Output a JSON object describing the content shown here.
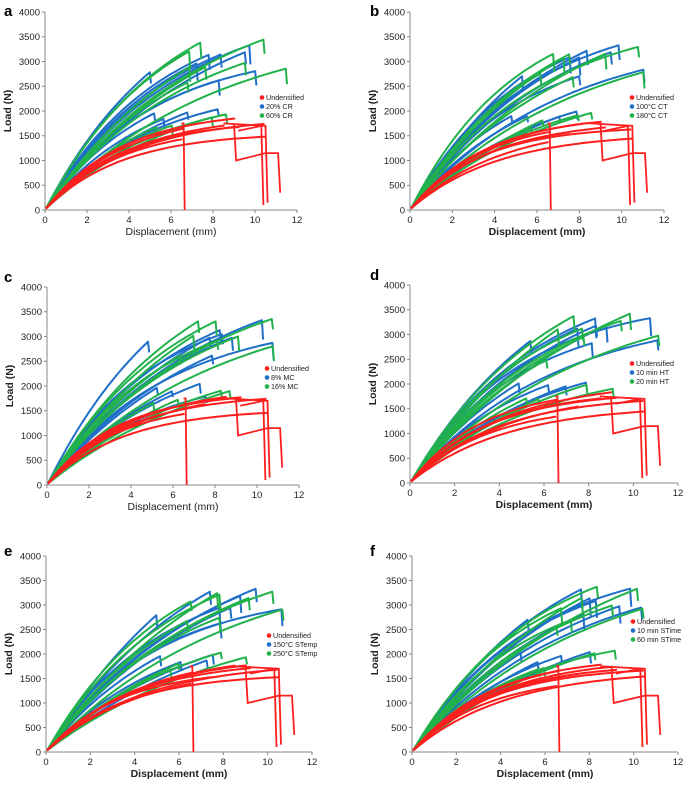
{
  "figure": {
    "description_caption": ""
  },
  "chart_data": [
    {
      "type": "line",
      "panel": "a",
      "xlabel": "Displacement (mm)",
      "ylabel": "Load (N)",
      "xlim": [
        0,
        12
      ],
      "ylim": [
        0,
        4000
      ],
      "xticks": [
        "0",
        "2",
        "4",
        "6",
        "8",
        "10",
        "12"
      ],
      "yticks": [
        "0",
        "500",
        "1000",
        "1500",
        "2000",
        "2500",
        "3000",
        "3500",
        "4000"
      ],
      "legend": [
        "Undensified",
        "20% CR",
        "60% CR"
      ],
      "colors": {
        "Undensified": "#ff1e1e",
        "blue": "#1f6fc9",
        "green": "#21b24b"
      },
      "seed": 11
    },
    {
      "type": "line",
      "panel": "b",
      "xlabel": "Displacement (mm)",
      "ylabel": "Load (N)",
      "xlim": [
        0,
        12
      ],
      "ylim": [
        0,
        4000
      ],
      "xticks": [
        "0",
        "2",
        "4",
        "6",
        "8",
        "10",
        "12"
      ],
      "yticks": [
        "0",
        "500",
        "1000",
        "1500",
        "2000",
        "2500",
        "3000",
        "3500",
        "4000"
      ],
      "legend": [
        "Undensified",
        "100°C CT",
        "180°C CT"
      ],
      "colors": {
        "Undensified": "#ff1e1e",
        "blue": "#1f6fc9",
        "green": "#21b24b"
      },
      "seed": 23
    },
    {
      "type": "line",
      "panel": "c",
      "xlabel": "Displacement (mm)",
      "ylabel": "Load (N)",
      "xlim": [
        0,
        12
      ],
      "ylim": [
        0,
        4000
      ],
      "xticks": [
        "0",
        "2",
        "4",
        "6",
        "8",
        "10",
        "12"
      ],
      "yticks": [
        "0",
        "500",
        "1000",
        "1500",
        "2000",
        "2500",
        "3000",
        "3500",
        "4000"
      ],
      "legend": [
        "Undensified",
        "8% MC",
        "16% MC"
      ],
      "colors": {
        "Undensified": "#ff1e1e",
        "blue": "#1f6fc9",
        "green": "#21b24b"
      },
      "seed": 37
    },
    {
      "type": "line",
      "panel": "d",
      "xlabel": "Displacement (mm)",
      "ylabel": "Load (N)",
      "xlim": [
        0,
        12
      ],
      "ylim": [
        0,
        4000
      ],
      "xticks": [
        "0",
        "2",
        "4",
        "6",
        "8",
        "10",
        "12"
      ],
      "yticks": [
        "0",
        "500",
        "1000",
        "1500",
        "2000",
        "2500",
        "3000",
        "3500",
        "4000"
      ],
      "legend": [
        "Undensified",
        "10 min HT",
        "20 min HT"
      ],
      "colors": {
        "Undensified": "#ff1e1e",
        "blue": "#1f6fc9",
        "green": "#21b24b"
      },
      "seed": 41
    },
    {
      "type": "line",
      "panel": "e",
      "xlabel": "Displacement (mm)",
      "ylabel": "Load (N)",
      "xlim": [
        0,
        12
      ],
      "ylim": [
        0,
        4000
      ],
      "xticks": [
        "0",
        "2",
        "4",
        "6",
        "8",
        "10",
        "12"
      ],
      "yticks": [
        "0",
        "500",
        "1000",
        "1500",
        "2000",
        "2500",
        "3000",
        "3500",
        "4000"
      ],
      "legend": [
        "Undensified",
        "150°C STemp",
        "250°C STemp"
      ],
      "colors": {
        "Undensified": "#ff1e1e",
        "blue": "#1f6fc9",
        "green": "#21b24b"
      },
      "seed": 53
    },
    {
      "type": "line",
      "panel": "f",
      "xlabel": "Displacement (mm)",
      "ylabel": "Load (N)",
      "xlim": [
        0,
        12
      ],
      "ylim": [
        0,
        4000
      ],
      "xticks": [
        "0",
        "2",
        "4",
        "6",
        "8",
        "10",
        "12"
      ],
      "yticks": [
        "0",
        "500",
        "1000",
        "1500",
        "2000",
        "2500",
        "3000",
        "3500",
        "4000"
      ],
      "legend": [
        "Undensified",
        "10 min STime",
        "60 min STime"
      ],
      "colors": {
        "Undensified": "#ff1e1e",
        "blue": "#1f6fc9",
        "green": "#21b24b"
      },
      "seed": 67
    }
  ]
}
